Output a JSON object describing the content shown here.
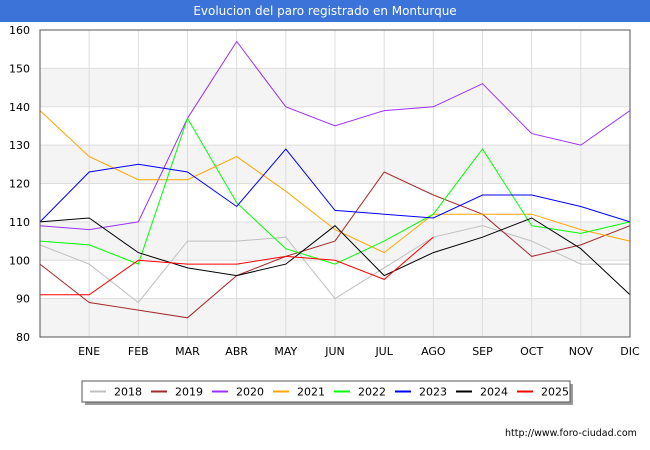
{
  "chart_data": {
    "type": "line",
    "title": "Evolucion del paro registrado en Monturque",
    "xlabel": "",
    "ylabel": "",
    "categories": [
      "",
      "ENE",
      "FEB",
      "MAR",
      "ABR",
      "MAY",
      "JUN",
      "JUL",
      "AGO",
      "SEP",
      "OCT",
      "NOV",
      "DIC"
    ],
    "ylim": [
      80,
      160
    ],
    "yticks": [
      80,
      90,
      100,
      110,
      120,
      130,
      140,
      150,
      160
    ],
    "grid": true,
    "legend_position": "bottom",
    "series": [
      {
        "name": "2018",
        "color": "#c0c0c0",
        "values": [
          104,
          99,
          89,
          105,
          105,
          106,
          90,
          98,
          106,
          109,
          105,
          99,
          99
        ]
      },
      {
        "name": "2019",
        "color": "#a52a2a",
        "values": [
          99,
          89,
          87,
          85,
          96,
          101,
          105,
          123,
          117,
          112,
          101,
          104,
          109
        ]
      },
      {
        "name": "2020",
        "color": "#9b30ff",
        "values": [
          109,
          108,
          110,
          137,
          157,
          140,
          135,
          139,
          140,
          146,
          133,
          130,
          139
        ]
      },
      {
        "name": "2021",
        "color": "#ffa500",
        "values": [
          139,
          127,
          121,
          121,
          127,
          118,
          108,
          102,
          112,
          112,
          112,
          108,
          105
        ]
      },
      {
        "name": "2022",
        "color": "#00ff00",
        "values": [
          105,
          104,
          99,
          137,
          115,
          103,
          99,
          105,
          112,
          129,
          109,
          107,
          110
        ]
      },
      {
        "name": "2023",
        "color": "#0000ff",
        "values": [
          110,
          123,
          125,
          123,
          114,
          129,
          113,
          112,
          111,
          117,
          117,
          114,
          110
        ]
      },
      {
        "name": "2024",
        "color": "#000000",
        "values": [
          110,
          111,
          102,
          98,
          96,
          99,
          109,
          96,
          102,
          106,
          111,
          103,
          91
        ]
      },
      {
        "name": "2025",
        "color": "#ff0000",
        "values": [
          91,
          91,
          100,
          99,
          99,
          101,
          100,
          95,
          106,
          null,
          null,
          null,
          null
        ]
      }
    ]
  },
  "footer": {
    "url": "http://www.foro-ciudad.com"
  }
}
